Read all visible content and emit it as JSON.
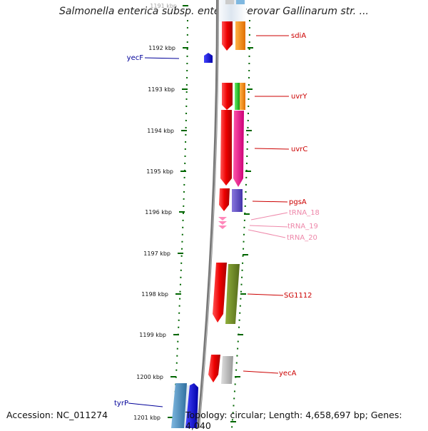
{
  "title": "Salmonella enterica subsp. enterica serovar Gallinarum str. ...",
  "footer": {
    "accession": "Accession: NC_011274",
    "topology": "Topology: circular; Length: 4,658,697 bp; Genes: 4,040"
  },
  "axis_ticks": [
    "1191 kbp",
    "1192 kbp",
    "1193 kbp",
    "1194 kbp",
    "1195 kbp",
    "1196 kbp",
    "1197 kbp",
    "1198 kbp",
    "1199 kbp",
    "1200 kbp",
    "1201 kbp"
  ],
  "genes_right": [
    "sdiA",
    "uvrY",
    "uvrC",
    "pgsA",
    "tRNA_18",
    "tRNA_19",
    "tRNA_20",
    "SG1112",
    "yecA"
  ],
  "genes_left": [
    "yecF",
    "tyrP"
  ],
  "colors": {
    "red": "#ee0000",
    "orange": "#ff8800",
    "green": "#22cc22",
    "magenta": "#ee1188",
    "slate": "#6655cc",
    "olive": "#6b8e23",
    "gray": "#aaaaaa",
    "pink": "#ff88bb",
    "blue": "#0000ee",
    "steel": "#4a90c0",
    "label_red": "#cc0000",
    "label_pink": "#ee88aa",
    "label_blue": "#000099",
    "tick_green": "#006600"
  }
}
